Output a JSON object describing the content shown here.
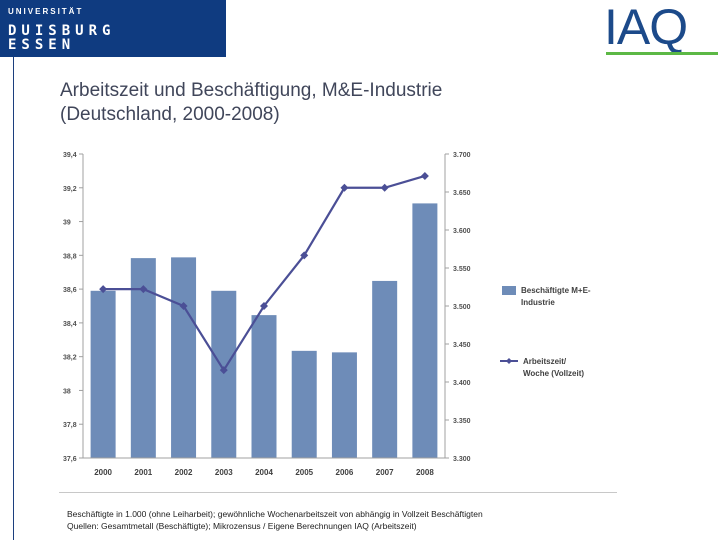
{
  "branding": {
    "university_line1": "UNIVERSITÄT",
    "university_line2": "DUISBURG",
    "university_line3": "ESSEN",
    "institute_logo": "IAQ",
    "colors": {
      "university_blue": "#0f3b80",
      "iaq_blue": "#1c4a8a",
      "iaq_green": "#5cb845"
    }
  },
  "slide": {
    "title_line1": "Arbeitszeit und Beschäftigung, M&E-Industrie",
    "title_line2": "(Deutschland, 2000-2008)"
  },
  "footnote": {
    "line1": "Beschäftigte in 1.000 (ohne Leiharbeit); gewöhnliche Wochenarbeitszeit von abhängig in Vollzeit Beschäftigten",
    "line2": "Quellen: Gesamtmetall (Beschäftigte); Mikrozensus / Eigene Berechnungen IAQ (Arbeitszeit)"
  },
  "chart_data": {
    "type": "bar+line",
    "categories": [
      "2000",
      "2001",
      "2002",
      "2003",
      "2004",
      "2005",
      "2006",
      "2007",
      "2008"
    ],
    "series": [
      {
        "name": "Beschäftigte M+E-Industrie",
        "legend_lines": [
          "Beschäftigte M+E-",
          "Industrie"
        ],
        "kind": "bar",
        "axis": "right",
        "color": "#6e8cb8",
        "values": [
          3.52,
          3.563,
          3.564,
          3.52,
          3.488,
          3.441,
          3.439,
          3.533,
          3.635
        ]
      },
      {
        "name": "Arbeitszeit/ Woche (Vollzeit)",
        "legend_lines": [
          "Arbeitszeit/",
          "Woche (Vollzeit)"
        ],
        "kind": "line",
        "axis": "left",
        "color": "#4b4f96",
        "values": [
          38.6,
          38.6,
          38.5,
          38.12,
          38.5,
          38.8,
          39.2,
          39.2,
          39.27
        ]
      }
    ],
    "left_axis": {
      "ylim": [
        37.6,
        39.4
      ],
      "ticks": [
        37.6,
        37.8,
        38,
        38.2,
        38.4,
        38.6,
        38.8,
        39,
        39.2,
        39.4
      ],
      "tick_labels": [
        "37,6",
        "37,8",
        "38",
        "38,2",
        "38,4",
        "38,6",
        "38,8",
        "39",
        "39,2",
        "39,4"
      ]
    },
    "right_axis": {
      "ylim": [
        3.3,
        3.7
      ],
      "ticks": [
        3.3,
        3.35,
        3.4,
        3.45,
        3.5,
        3.55,
        3.6,
        3.65,
        3.7
      ],
      "tick_labels": [
        "3.300",
        "3.350",
        "3.400",
        "3.450",
        "3.500",
        "3.550",
        "3.600",
        "3.650",
        "3.700"
      ]
    },
    "legend_position": "right",
    "grid": false
  }
}
